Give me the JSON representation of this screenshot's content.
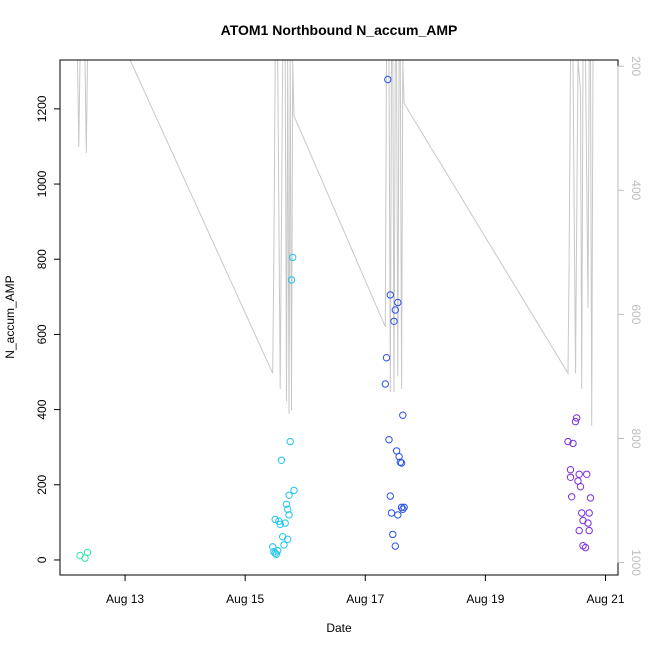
{
  "chart_data": {
    "type": "scatter",
    "title": "ATOM1 Northbound N_accum_AMP",
    "xlabel": "Date",
    "ylabel": "N_accum_AMP",
    "xlim": [
      "2012-08-11T22:00",
      "2012-08-21T05:00"
    ],
    "ylim": [
      -40,
      1330
    ],
    "x_ticks": [
      {
        "value": "2012-08-13T00:00",
        "label": "Aug 13"
      },
      {
        "value": "2012-08-15T00:00",
        "label": "Aug 15"
      },
      {
        "value": "2012-08-17T00:00",
        "label": "Aug 17"
      },
      {
        "value": "2012-08-19T00:00",
        "label": "Aug 19"
      },
      {
        "value": "2012-08-21T00:00",
        "label": "Aug 21"
      }
    ],
    "y_ticks": [
      0,
      200,
      400,
      600,
      800,
      1000,
      1200
    ],
    "right_axis": {
      "reversed": true,
      "ylim": [
        190,
        1020
      ],
      "ticks": [
        200,
        400,
        600,
        800,
        1000
      ],
      "color": "#bdbdbd"
    },
    "grid": false,
    "legend": "none",
    "series": [
      {
        "color": "#33e6b0",
        "points": [
          [
            "2012-08-12T06:00",
            12
          ],
          [
            "2012-08-12T08:00",
            5
          ],
          [
            "2012-08-12T09:00",
            20
          ]
        ]
      },
      {
        "color": "#1fc6f0",
        "points": [
          [
            "2012-08-15T11:00",
            35
          ],
          [
            "2012-08-15T11:30",
            22
          ],
          [
            "2012-08-15T12:00",
            18
          ],
          [
            "2012-08-15T12:30",
            15
          ],
          [
            "2012-08-15T13:00",
            25
          ],
          [
            "2012-08-15T12:00",
            108
          ],
          [
            "2012-08-15T13:30",
            103
          ],
          [
            "2012-08-15T14:00",
            95
          ],
          [
            "2012-08-15T14:30",
            265
          ],
          [
            "2012-08-15T15:00",
            62
          ],
          [
            "2012-08-15T15:30",
            40
          ],
          [
            "2012-08-15T16:00",
            98
          ],
          [
            "2012-08-15T16:30",
            148
          ],
          [
            "2012-08-15T17:00",
            135
          ],
          [
            "2012-08-15T17:30",
            120
          ],
          [
            "2012-08-15T17:00",
            55
          ],
          [
            "2012-08-15T17:30",
            172
          ],
          [
            "2012-08-15T18:00",
            315
          ],
          [
            "2012-08-15T18:30",
            745
          ],
          [
            "2012-08-15T19:00",
            805
          ],
          [
            "2012-08-15T19:30",
            185
          ]
        ]
      },
      {
        "color": "#2a52e8",
        "points": [
          [
            "2012-08-17T08:00",
            468
          ],
          [
            "2012-08-17T08:30",
            538
          ],
          [
            "2012-08-17T09:00",
            1278
          ],
          [
            "2012-08-17T09:30",
            320
          ],
          [
            "2012-08-17T10:00",
            705
          ],
          [
            "2012-08-17T10:00",
            170
          ],
          [
            "2012-08-17T10:30",
            125
          ],
          [
            "2012-08-17T11:00",
            68
          ],
          [
            "2012-08-17T11:30",
            635
          ],
          [
            "2012-08-17T12:00",
            37
          ],
          [
            "2012-08-17T12:00",
            665
          ],
          [
            "2012-08-17T12:30",
            290
          ],
          [
            "2012-08-17T13:00",
            120
          ],
          [
            "2012-08-17T13:00",
            685
          ],
          [
            "2012-08-17T13:30",
            275
          ],
          [
            "2012-08-17T14:00",
            260
          ],
          [
            "2012-08-17T14:30",
            140
          ],
          [
            "2012-08-17T14:30",
            258
          ],
          [
            "2012-08-17T15:00",
            135
          ],
          [
            "2012-08-17T15:00",
            385
          ],
          [
            "2012-08-17T15:30",
            140
          ]
        ]
      },
      {
        "color": "#7a2fe0",
        "points": [
          [
            "2012-08-20T09:00",
            315
          ],
          [
            "2012-08-20T10:00",
            240
          ],
          [
            "2012-08-20T10:00",
            220
          ],
          [
            "2012-08-20T10:30",
            168
          ],
          [
            "2012-08-20T11:00",
            310
          ],
          [
            "2012-08-20T12:00",
            368
          ],
          [
            "2012-08-20T12:30",
            378
          ],
          [
            "2012-08-20T13:00",
            210
          ],
          [
            "2012-08-20T13:30",
            228
          ],
          [
            "2012-08-20T13:30",
            78
          ],
          [
            "2012-08-20T14:00",
            195
          ],
          [
            "2012-08-20T14:30",
            125
          ],
          [
            "2012-08-20T15:00",
            105
          ],
          [
            "2012-08-20T15:00",
            38
          ],
          [
            "2012-08-20T16:00",
            33
          ],
          [
            "2012-08-20T16:30",
            228
          ],
          [
            "2012-08-20T17:00",
            98
          ],
          [
            "2012-08-20T17:30",
            78
          ],
          [
            "2012-08-20T17:30",
            125
          ],
          [
            "2012-08-20T18:00",
            165
          ]
        ]
      }
    ],
    "line_series": {
      "axis": "right",
      "color": "#c8c8c8",
      "points": [
        [
          "2012-08-12T05:00",
          190
        ],
        [
          "2012-08-12T05:30",
          330
        ],
        [
          "2012-08-12T06:00",
          190
        ],
        [
          "2012-08-12T08:00",
          190
        ],
        [
          "2012-08-12T08:30",
          340
        ],
        [
          "2012-08-12T09:00",
          190
        ],
        [
          "2012-08-13T02:00",
          190
        ],
        [
          "2012-08-15T11:00",
          695
        ],
        [
          "2012-08-15T11:30",
          500
        ],
        [
          "2012-08-15T12:00",
          190
        ],
        [
          "2012-08-15T13:00",
          190
        ],
        [
          "2012-08-15T14:00",
          720
        ],
        [
          "2012-08-15T15:00",
          190
        ],
        [
          "2012-08-15T16:00",
          190
        ],
        [
          "2012-08-15T16:30",
          740
        ],
        [
          "2012-08-15T17:00",
          190
        ],
        [
          "2012-08-15T17:30",
          760
        ],
        [
          "2012-08-15T18:00",
          190
        ],
        [
          "2012-08-15T18:30",
          755
        ],
        [
          "2012-08-15T19:00",
          190
        ],
        [
          "2012-08-15T19:30",
          280
        ],
        [
          "2012-08-17T08:00",
          620
        ],
        [
          "2012-08-17T08:30",
          190
        ],
        [
          "2012-08-17T09:30",
          190
        ],
        [
          "2012-08-17T10:00",
          725
        ],
        [
          "2012-08-17T10:30",
          190
        ],
        [
          "2012-08-17T11:00",
          190
        ],
        [
          "2012-08-17T11:30",
          725
        ],
        [
          "2012-08-17T12:00",
          190
        ],
        [
          "2012-08-17T12:30",
          190
        ],
        [
          "2012-08-17T13:00",
          700
        ],
        [
          "2012-08-17T13:30",
          190
        ],
        [
          "2012-08-17T14:00",
          190
        ],
        [
          "2012-08-17T14:30",
          720
        ],
        [
          "2012-08-17T15:00",
          190
        ],
        [
          "2012-08-17T15:30",
          260
        ],
        [
          "2012-08-20T09:00",
          695
        ],
        [
          "2012-08-20T09:30",
          500
        ],
        [
          "2012-08-20T10:00",
          190
        ],
        [
          "2012-08-20T11:00",
          190
        ],
        [
          "2012-08-20T12:00",
          695
        ],
        [
          "2012-08-20T13:00",
          190
        ],
        [
          "2012-08-20T14:00",
          240
        ],
        [
          "2012-08-20T14:30",
          720
        ],
        [
          "2012-08-20T15:00",
          190
        ],
        [
          "2012-08-20T16:00",
          190
        ],
        [
          "2012-08-20T17:00",
          590
        ],
        [
          "2012-08-20T17:30",
          190
        ],
        [
          "2012-08-20T18:00",
          190
        ],
        [
          "2012-08-20T18:30",
          780
        ],
        [
          "2012-08-20T19:00",
          190
        ]
      ]
    }
  }
}
